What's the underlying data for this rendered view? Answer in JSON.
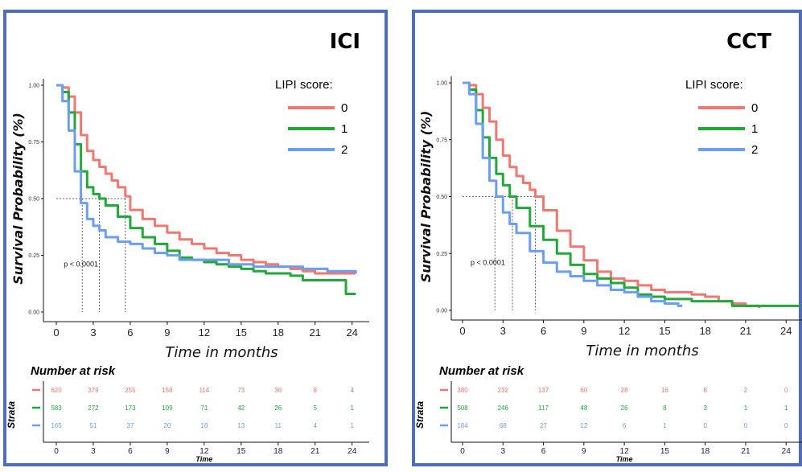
{
  "legend_title": "LIPI score:",
  "y_axis_label": "Survival Probability (%)",
  "x_axis_label": "Time in months",
  "risk_table_title": "Number at risk",
  "risk_table_ylabel": "Strata",
  "risk_table_xlabel": "Time",
  "pvalue": "p < 0.0001",
  "colors": {
    "0": "#f07870",
    "1": "#22a83a",
    "2": "#6b9ef0",
    "border": "#4f6fb5"
  },
  "chart_data": [
    {
      "type": "line",
      "title": "ICI",
      "xlabel": "Time in months",
      "ylabel": "Survival Probability (%)",
      "xlim": [
        0,
        25
      ],
      "ylim": [
        0,
        1
      ],
      "x_ticks": [
        0,
        3,
        6,
        9,
        12,
        15,
        18,
        21,
        24
      ],
      "y_ticks": [
        "0.00",
        "0.25",
        "0.50",
        "0.75",
        "1.00"
      ],
      "legend_title": "LIPI score:",
      "medians": [
        5.6,
        3.5,
        2.1
      ],
      "annotation": "p < 0.0001",
      "series": [
        {
          "name": "0",
          "x": [
            0,
            0.5,
            1,
            1.5,
            2,
            2.5,
            3,
            3.5,
            4,
            4.5,
            5,
            5.6,
            6,
            7,
            8,
            9,
            10,
            11,
            12,
            13,
            14,
            15,
            16,
            17,
            18,
            19,
            20,
            21,
            22,
            23,
            24,
            24.3
          ],
          "y": [
            1.0,
            0.99,
            0.95,
            0.88,
            0.78,
            0.71,
            0.67,
            0.64,
            0.61,
            0.58,
            0.55,
            0.51,
            0.45,
            0.41,
            0.38,
            0.35,
            0.32,
            0.3,
            0.28,
            0.26,
            0.25,
            0.23,
            0.22,
            0.21,
            0.2,
            0.19,
            0.18,
            0.17,
            0.17,
            0.17,
            0.17,
            0.17
          ]
        },
        {
          "name": "1",
          "x": [
            0,
            0.5,
            1,
            1.5,
            2,
            2.5,
            3,
            3.5,
            4,
            5,
            6,
            7,
            8,
            9,
            10,
            11,
            12,
            13,
            14,
            15,
            16,
            17,
            18,
            19,
            20,
            21,
            22,
            23,
            23.5,
            24.3
          ],
          "y": [
            1.0,
            0.97,
            0.88,
            0.74,
            0.62,
            0.55,
            0.52,
            0.5,
            0.47,
            0.42,
            0.37,
            0.33,
            0.3,
            0.27,
            0.24,
            0.23,
            0.22,
            0.21,
            0.2,
            0.19,
            0.18,
            0.17,
            0.17,
            0.16,
            0.14,
            0.14,
            0.14,
            0.14,
            0.08,
            0.08
          ]
        },
        {
          "name": "2",
          "x": [
            0,
            0.5,
            1,
            1.5,
            2,
            2.5,
            3,
            3.5,
            4,
            5,
            6,
            7,
            8,
            9,
            10,
            12,
            14,
            16,
            18,
            20,
            22,
            24.3
          ],
          "y": [
            1.0,
            0.93,
            0.8,
            0.62,
            0.48,
            0.41,
            0.38,
            0.36,
            0.33,
            0.31,
            0.3,
            0.28,
            0.26,
            0.25,
            0.23,
            0.23,
            0.21,
            0.2,
            0.2,
            0.19,
            0.18,
            0.17
          ]
        }
      ],
      "risk_times": [
        0,
        3,
        6,
        9,
        12,
        15,
        18,
        21,
        24
      ],
      "risk_table": [
        {
          "name": "0",
          "values": [
            620,
            379,
            255,
            158,
            114,
            73,
            36,
            8,
            4
          ]
        },
        {
          "name": "1",
          "values": [
            583,
            272,
            173,
            109,
            71,
            42,
            26,
            5,
            1
          ]
        },
        {
          "name": "2",
          "values": [
            165,
            51,
            37,
            20,
            18,
            13,
            11,
            4,
            1
          ]
        }
      ]
    },
    {
      "type": "line",
      "title": "CCT",
      "xlabel": "Time in months",
      "ylabel": "Survival Probability (%)",
      "xlim": [
        0,
        25
      ],
      "ylim": [
        0,
        1
      ],
      "x_ticks": [
        0,
        3,
        6,
        9,
        12,
        15,
        18,
        21,
        24
      ],
      "y_ticks": [
        "0.00",
        "0.25",
        "0.50",
        "0.75",
        "1.00"
      ],
      "legend_title": "LIPI score:",
      "medians": [
        5.4,
        3.7,
        2.4
      ],
      "annotation": "p < 0.0001",
      "series": [
        {
          "name": "0",
          "x": [
            0,
            0.5,
            1,
            1.5,
            2,
            2.5,
            3,
            3.5,
            4,
            4.5,
            5,
            5.4,
            6,
            7,
            8,
            9,
            10,
            11,
            12,
            13,
            14,
            15,
            16,
            17,
            18,
            19,
            20,
            21,
            22
          ],
          "y": [
            1.0,
            0.99,
            0.95,
            0.89,
            0.83,
            0.75,
            0.68,
            0.63,
            0.59,
            0.56,
            0.53,
            0.5,
            0.44,
            0.35,
            0.28,
            0.22,
            0.17,
            0.14,
            0.13,
            0.11,
            0.09,
            0.08,
            0.08,
            0.07,
            0.06,
            0.04,
            0.03,
            0.02,
            0.01
          ]
        },
        {
          "name": "1",
          "x": [
            0,
            0.5,
            1,
            1.5,
            2,
            2.5,
            3,
            3.5,
            4,
            5,
            6,
            7,
            8,
            9,
            10,
            11,
            12,
            13,
            14,
            15,
            16,
            17,
            18,
            19,
            20,
            21,
            22,
            23,
            24,
            25
          ],
          "y": [
            1.0,
            0.97,
            0.88,
            0.76,
            0.67,
            0.6,
            0.55,
            0.5,
            0.45,
            0.37,
            0.31,
            0.25,
            0.2,
            0.16,
            0.14,
            0.12,
            0.1,
            0.07,
            0.06,
            0.05,
            0.05,
            0.04,
            0.04,
            0.04,
            0.02,
            0.02,
            0.02,
            0.02,
            0.02,
            0.02
          ]
        },
        {
          "name": "2",
          "x": [
            0,
            0.5,
            1,
            1.5,
            2,
            2.5,
            3,
            3.5,
            4,
            5,
            6,
            7,
            8,
            9,
            10,
            11,
            12,
            13,
            14,
            15,
            16,
            16.3
          ],
          "y": [
            1.0,
            0.95,
            0.82,
            0.67,
            0.57,
            0.5,
            0.43,
            0.38,
            0.34,
            0.26,
            0.21,
            0.17,
            0.15,
            0.13,
            0.11,
            0.09,
            0.08,
            0.06,
            0.04,
            0.03,
            0.02,
            0.02
          ]
        }
      ],
      "risk_times": [
        0,
        3,
        6,
        9,
        12,
        15,
        18,
        21,
        24
      ],
      "risk_table": [
        {
          "name": "0",
          "values": [
            380,
            232,
            137,
            60,
            28,
            16,
            8,
            2,
            0
          ]
        },
        {
          "name": "1",
          "values": [
            508,
            246,
            117,
            48,
            26,
            8,
            3,
            1,
            1
          ]
        },
        {
          "name": "2",
          "values": [
            184,
            68,
            27,
            12,
            6,
            1,
            0,
            0,
            0
          ]
        }
      ]
    }
  ]
}
